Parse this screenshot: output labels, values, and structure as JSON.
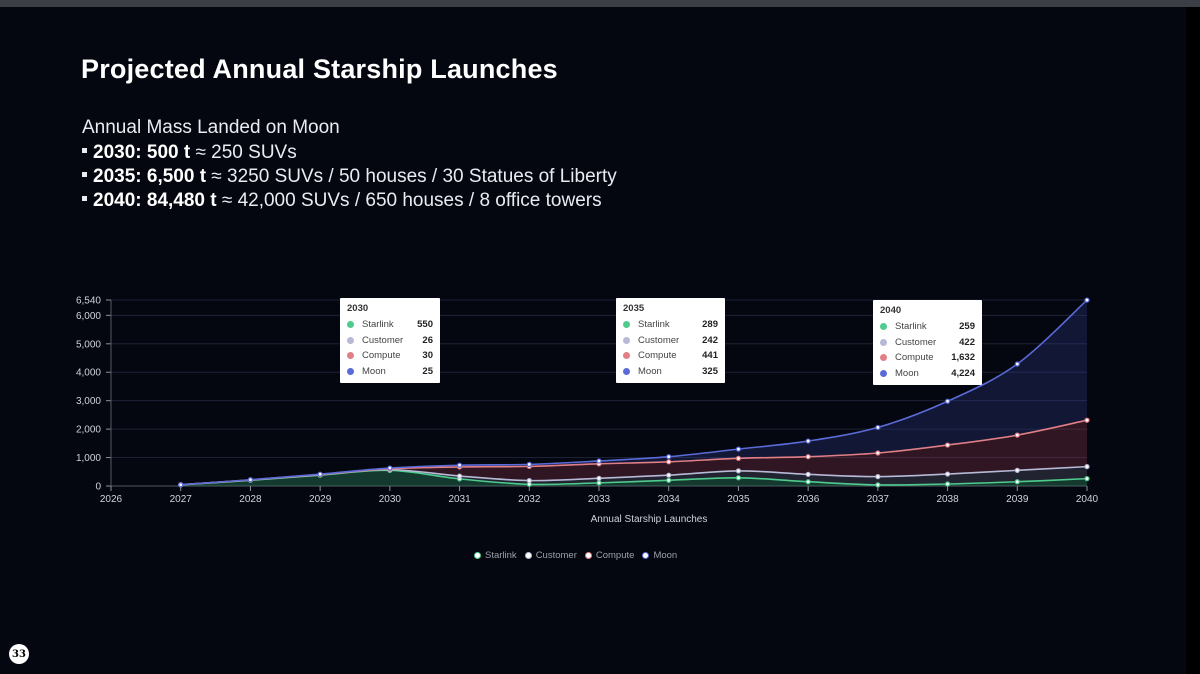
{
  "slide": {
    "title": "Projected Annual Starship Launches",
    "subtitle": "Annual Mass Landed on Moon",
    "bullets": [
      {
        "bold": "2030: 500 t",
        "rest": " ≈ 250 SUVs"
      },
      {
        "bold": "2035: 6,500 t",
        "rest": " ≈ 3250 SUVs / 50 houses / 30 Statues of Liberty"
      },
      {
        "bold": "2040: 84,480 t",
        "rest": " ≈ 42,000 SUVs / 650 houses / 8 office towers"
      }
    ],
    "page_number": "33"
  },
  "colors": {
    "starlink": "#4ecb8d",
    "customer": "#b7b9d6",
    "compute": "#e07f86",
    "moon": "#5a6bd8"
  },
  "chart_data": {
    "type": "area",
    "stacked": true,
    "xlabel": "Annual Starship Launches",
    "x": [
      2026,
      2027,
      2028,
      2029,
      2030,
      2031,
      2032,
      2033,
      2034,
      2035,
      2036,
      2037,
      2038,
      2039,
      2040
    ],
    "xlim": [
      2026,
      2040
    ],
    "ylim": [
      0,
      6540
    ],
    "yticks": [
      "0",
      "1,000",
      "2,000",
      "3,000",
      "4,000",
      "5,000",
      "6,000",
      "6,540"
    ],
    "ytick_values": [
      0,
      1000,
      2000,
      3000,
      4000,
      5000,
      6000,
      6540
    ],
    "series": [
      {
        "name": "Starlink",
        "key": "starlink",
        "values": [
          null,
          40,
          200,
          380,
          550,
          250,
          60,
          110,
          200,
          289,
          150,
          40,
          70,
          150,
          259
        ]
      },
      {
        "name": "Customer",
        "key": "customer",
        "values": [
          null,
          5,
          10,
          15,
          26,
          100,
          130,
          160,
          180,
          242,
          260,
          290,
          350,
          400,
          422
        ]
      },
      {
        "name": "Compute",
        "key": "compute",
        "values": [
          null,
          0,
          5,
          10,
          30,
          320,
          500,
          510,
          470,
          441,
          620,
          830,
          1020,
          1240,
          1632
        ]
      },
      {
        "name": "Moon",
        "key": "moon",
        "values": [
          null,
          0,
          5,
          10,
          25,
          60,
          70,
          100,
          180,
          325,
          550,
          900,
          1540,
          2500,
          4224
        ]
      }
    ],
    "legend": [
      "Starlink",
      "Customer",
      "Compute",
      "Moon"
    ],
    "tooltips": [
      {
        "year": "2030",
        "rows": [
          {
            "name": "Starlink",
            "value": "550"
          },
          {
            "name": "Customer",
            "value": "26"
          },
          {
            "name": "Compute",
            "value": "30"
          },
          {
            "name": "Moon",
            "value": "25"
          }
        ]
      },
      {
        "year": "2035",
        "rows": [
          {
            "name": "Starlink",
            "value": "289"
          },
          {
            "name": "Customer",
            "value": "242"
          },
          {
            "name": "Compute",
            "value": "441"
          },
          {
            "name": "Moon",
            "value": "325"
          }
        ]
      },
      {
        "year": "2040",
        "rows": [
          {
            "name": "Starlink",
            "value": "259"
          },
          {
            "name": "Customer",
            "value": "422"
          },
          {
            "name": "Compute",
            "value": "1,632"
          },
          {
            "name": "Moon",
            "value": "4,224"
          }
        ]
      }
    ]
  }
}
